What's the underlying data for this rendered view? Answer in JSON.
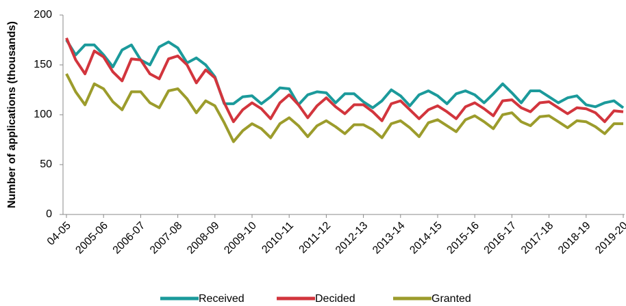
{
  "chart_data": {
    "type": "line",
    "y_label": "Number of applications (thousands)",
    "categories": [
      "04-05",
      null,
      null,
      null,
      "2005-06",
      null,
      null,
      null,
      "2006-07",
      null,
      null,
      null,
      "2007-08",
      null,
      null,
      null,
      "2008-09",
      null,
      null,
      null,
      "2009-10",
      null,
      null,
      null,
      "2010-11",
      null,
      null,
      null,
      "2011-12",
      null,
      null,
      null,
      "2012-13",
      null,
      null,
      null,
      "2013-14",
      null,
      null,
      null,
      "2014-15",
      null,
      null,
      null,
      "2015-16",
      null,
      null,
      null,
      "2016-17",
      null,
      null,
      null,
      "2017-18",
      null,
      null,
      null,
      "2018-19",
      null,
      null,
      null,
      "2019-20"
    ],
    "series": [
      {
        "name": "Received",
        "color": "#1b9a9b",
        "values": [
          175,
          160,
          170,
          170,
          160,
          148,
          165,
          170,
          155,
          150,
          168,
          173,
          167,
          152,
          157,
          150,
          138,
          111,
          111,
          118,
          119,
          111,
          118,
          127,
          126,
          110,
          120,
          123,
          122,
          112,
          121,
          121,
          113,
          107,
          114,
          125,
          119,
          109,
          120,
          124,
          119,
          111,
          121,
          124,
          120,
          112,
          121,
          131,
          122,
          112,
          124,
          124,
          118,
          112,
          117,
          119,
          110,
          108,
          112,
          114,
          107
        ]
      },
      {
        "name": "Decided",
        "color": "#d2353d",
        "values": [
          177,
          155,
          141,
          164,
          158,
          143,
          134,
          156,
          155,
          141,
          136,
          156,
          159,
          150,
          132,
          145,
          137,
          112,
          93,
          105,
          112,
          106,
          96,
          112,
          120,
          110,
          97,
          109,
          117,
          108,
          101,
          110,
          110,
          103,
          94,
          111,
          114,
          105,
          96,
          105,
          109,
          103,
          96,
          108,
          112,
          106,
          99,
          114,
          115,
          107,
          103,
          112,
          113,
          107,
          101,
          107,
          106,
          102,
          93,
          104,
          103
        ]
      },
      {
        "name": "Granted",
        "color": "#9c9c2c",
        "values": [
          141,
          123,
          110,
          131,
          126,
          113,
          105,
          123,
          123,
          112,
          107,
          124,
          126,
          116,
          102,
          114,
          109,
          92,
          73,
          84,
          91,
          86,
          77,
          91,
          97,
          89,
          78,
          89,
          94,
          88,
          81,
          90,
          90,
          85,
          77,
          91,
          94,
          87,
          78,
          92,
          95,
          89,
          83,
          95,
          99,
          93,
          86,
          100,
          102,
          93,
          89,
          98,
          99,
          93,
          87,
          94,
          93,
          88,
          81,
          91,
          91
        ]
      }
    ],
    "ylim": [
      0,
      200
    ],
    "yticks": [
      0,
      50,
      100,
      150,
      200
    ],
    "grid": false,
    "legend": "bottom"
  }
}
